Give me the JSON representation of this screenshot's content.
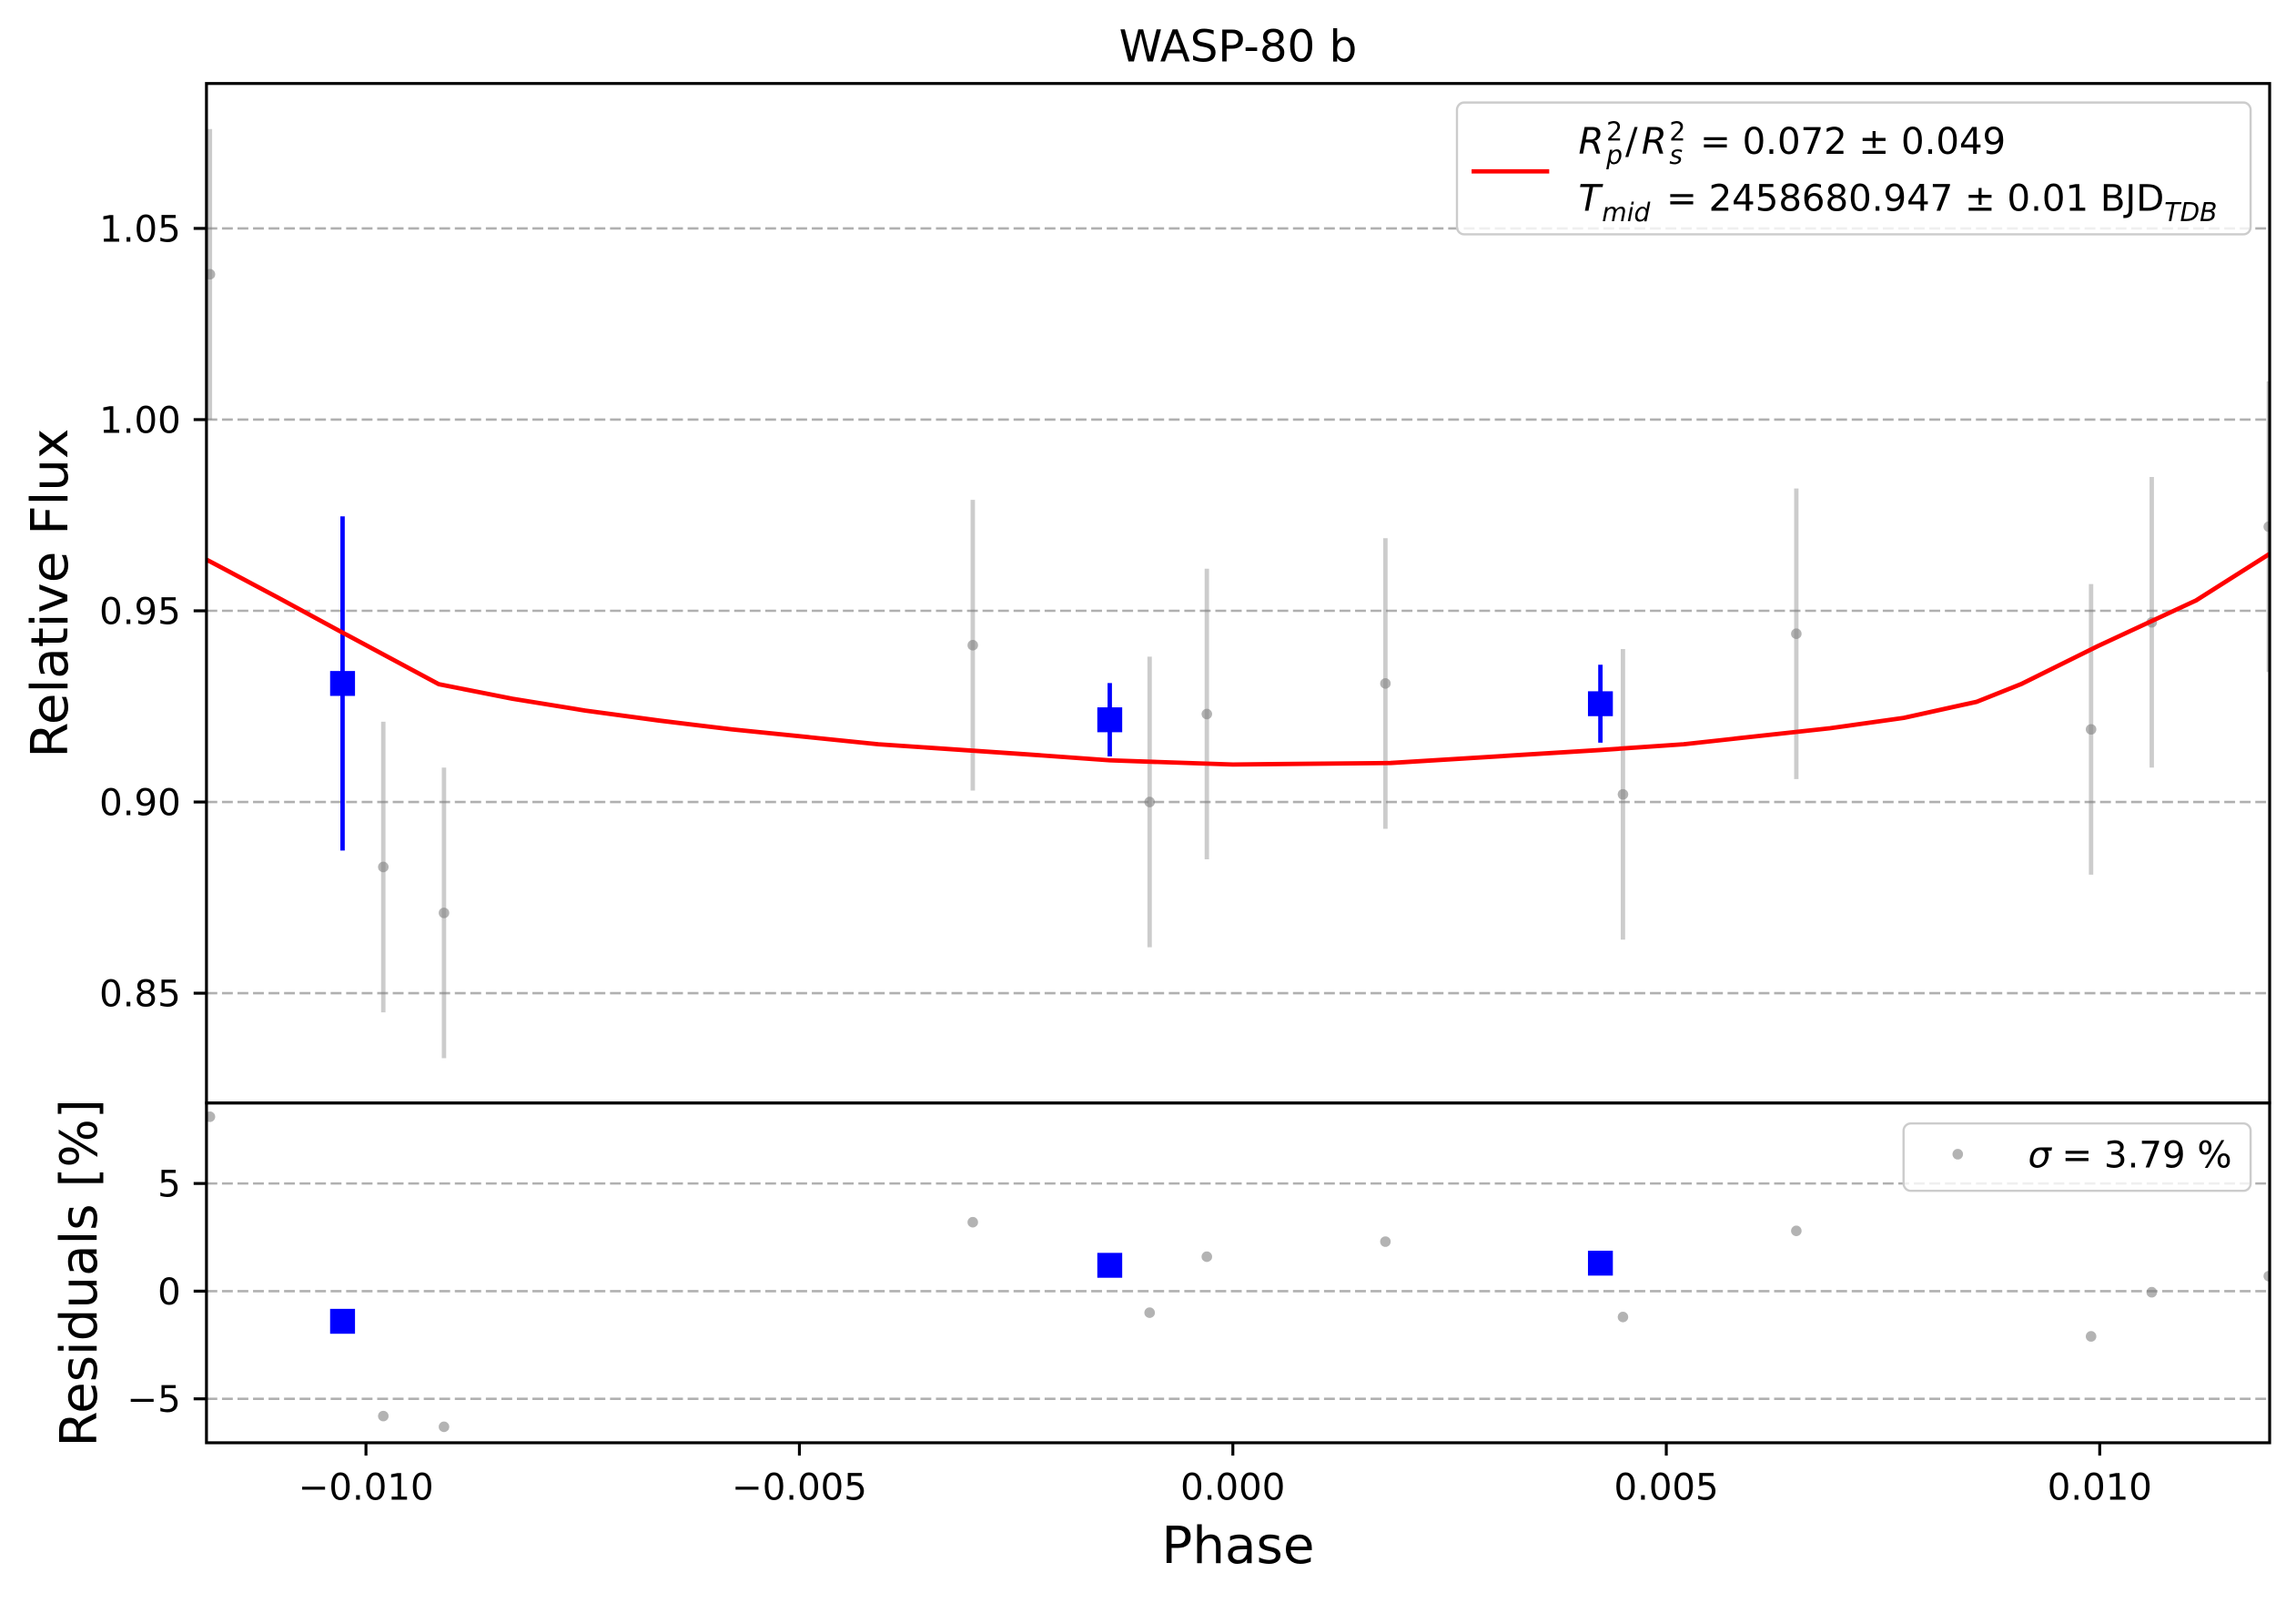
{
  "chart_data": {
    "type": "scatter",
    "title": "WASP-80 b",
    "xlabel": "Phase",
    "ylabel": "Relative Flux",
    "residuals_ylabel": "Residuals [%]",
    "xlim": [
      -0.01184,
      0.01196
    ],
    "ylim": [
      0.8213,
      1.0879
    ],
    "residuals_ylim": [
      -7.04,
      8.74
    ],
    "grid": {
      "x": false,
      "y": true
    },
    "x_ticks": [
      -0.01,
      -0.005,
      0.0,
      0.005,
      0.01
    ],
    "x_tick_labels": [
      "−0.010",
      "−0.005",
      "0.000",
      "0.005",
      "0.010"
    ],
    "y_ticks": [
      0.85,
      0.9,
      0.95,
      1.0,
      1.05
    ],
    "y_tick_labels": [
      "0.85",
      "0.90",
      "0.95",
      "1.00",
      "1.05"
    ],
    "residuals_y_ticks": [
      -5,
      0,
      5
    ],
    "residuals_y_tick_labels": [
      "−5",
      "0",
      "5"
    ],
    "data": {
      "color": "#808080",
      "phase": [
        -0.0118,
        -0.0098,
        -0.0091,
        -0.003,
        -0.00096,
        -0.0003,
        0.00176,
        0.0045,
        0.0065,
        0.0099,
        0.0106,
        0.01195
      ],
      "flux": [
        1.038,
        0.883,
        0.871,
        0.941,
        0.9,
        0.923,
        0.931,
        0.902,
        0.944,
        0.919,
        0.947,
        0.972
      ],
      "flux_err": [
        0.038,
        0.038,
        0.038,
        0.038,
        0.038,
        0.038,
        0.038,
        0.038,
        0.038,
        0.038,
        0.038,
        0.038
      ],
      "residual": [
        8.1,
        -5.8,
        -6.3,
        3.2,
        -1.0,
        1.6,
        2.3,
        -1.2,
        2.8,
        -2.1,
        -0.05,
        0.7
      ]
    },
    "binned": {
      "color": "#0000ff",
      "phase": [
        -0.01027,
        -0.00142,
        0.00424
      ],
      "flux": [
        0.931,
        0.9215,
        0.9257
      ],
      "flux_err": [
        0.0437,
        0.0096,
        0.0102
      ],
      "residual": [
        -1.4,
        1.2,
        1.3
      ]
    },
    "model": {
      "color": "#ff0000",
      "phase": [
        -0.01184,
        -0.01101,
        -0.01027,
        -0.00916,
        -0.00831,
        -0.00747,
        -0.00662,
        -0.00578,
        -0.00409,
        -0.0024,
        -0.00142,
        0.0,
        0.00182,
        0.00424,
        0.0052,
        0.00689,
        0.00774,
        0.00858,
        0.00909,
        0.00998,
        0.01111,
        0.01196
      ],
      "flux": [
        0.9634,
        0.9534,
        0.9443,
        0.9308,
        0.927,
        0.9239,
        0.9213,
        0.919,
        0.9151,
        0.9125,
        0.9109,
        0.9098,
        0.9102,
        0.9136,
        0.9151,
        0.9193,
        0.922,
        0.9262,
        0.9308,
        0.9408,
        0.9527,
        0.9649
      ]
    },
    "legend": {
      "location": "upper right",
      "model_label": {
        "ratio_symbol": "R",
        "ratio_numerator_sup": "2",
        "ratio_numerator_sub": "p",
        "ratio_slash": "/",
        "ratio_denominator_symbol": "R",
        "ratio_denominator_sup": "2",
        "ratio_denominator_sub": "s",
        "ratio_value": "= 0.072 ± 0.049",
        "tmid_symbol": "T",
        "tmid_sub": "mid",
        "tmid_value": "= 2458680.947 ± 0.01 BJD",
        "tmid_unit_sub": "TDB"
      }
    },
    "residuals_legend": {
      "location": "upper right",
      "symbol": "σ",
      "value": "= 3.79 %"
    }
  }
}
